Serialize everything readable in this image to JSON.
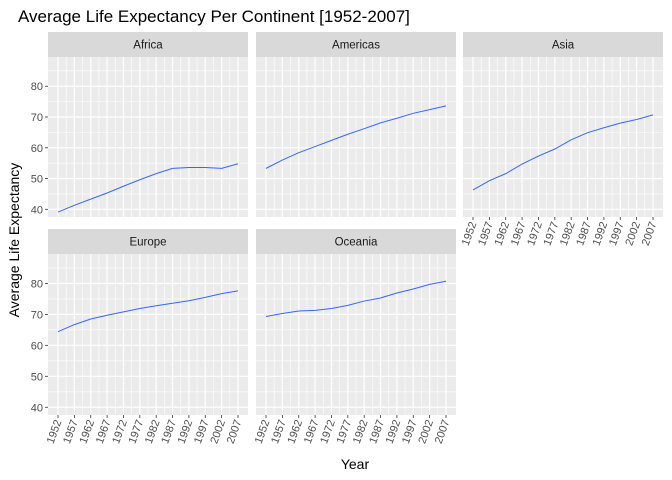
{
  "chart_data": {
    "type": "line",
    "title": "Average Life Expectancy Per Continent [1952-2007]",
    "xlabel": "Year",
    "ylabel": "Average Life Expectancy",
    "x": [
      1952,
      1957,
      1962,
      1967,
      1972,
      1977,
      1982,
      1987,
      1992,
      1997,
      2002,
      2007
    ],
    "x_tick_labels": [
      "1952",
      "1957",
      "1962",
      "1967",
      "1972",
      "1977",
      "1982",
      "1987",
      "1992",
      "1997",
      "2002",
      "2007"
    ],
    "xlim": [
      1952,
      2007
    ],
    "ylim": [
      37.5,
      89.5
    ],
    "y_ticks": [
      40,
      50,
      60,
      70,
      80
    ],
    "grid": true,
    "layout": "facet_wrap",
    "line_color": "#3366FF",
    "panel_background": "#EBEBEB",
    "strip_background": "#D9D9D9",
    "panels": [
      {
        "name": "Africa",
        "values": [
          39.1,
          41.3,
          43.3,
          45.3,
          47.5,
          49.6,
          51.6,
          53.3,
          53.6,
          53.6,
          53.3,
          54.8
        ]
      },
      {
        "name": "Americas",
        "values": [
          53.3,
          56.0,
          58.4,
          60.4,
          62.4,
          64.4,
          66.2,
          68.1,
          69.6,
          71.2,
          72.4,
          73.6
        ]
      },
      {
        "name": "Asia",
        "values": [
          46.3,
          49.3,
          51.6,
          54.7,
          57.3,
          59.6,
          62.6,
          64.9,
          66.5,
          68.0,
          69.2,
          70.7
        ]
      },
      {
        "name": "Europe",
        "values": [
          64.4,
          66.7,
          68.5,
          69.7,
          70.8,
          71.9,
          72.8,
          73.6,
          74.4,
          75.5,
          76.7,
          77.6
        ]
      },
      {
        "name": "Oceania",
        "values": [
          69.3,
          70.3,
          71.1,
          71.3,
          71.9,
          72.9,
          74.3,
          75.3,
          76.9,
          78.2,
          79.7,
          80.7
        ]
      }
    ]
  }
}
